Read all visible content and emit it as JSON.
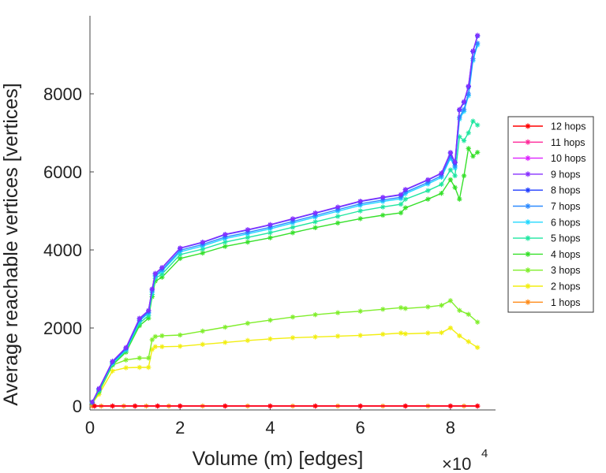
{
  "chart_data": {
    "type": "line",
    "title": "",
    "xlabel": "Volume (m) [edges]",
    "ylabel": "Average reachable vertices [vertices]",
    "x_multiplier_base": "×10",
    "x_multiplier_exp": "4",
    "xlim": [
      0,
      9
    ],
    "ylim": [
      -100,
      10000
    ],
    "xticks": [
      0,
      2,
      4,
      6,
      8
    ],
    "yticks": [
      0,
      2000,
      4000,
      6000,
      8000
    ],
    "xtick_labels": [
      "0",
      "2",
      "4",
      "6",
      "8"
    ],
    "ytick_labels": [
      "0",
      "2000",
      "4000",
      "6000",
      "8000"
    ],
    "grid": false,
    "legend_position": "right",
    "series": [
      {
        "name": "12 hops",
        "color": "#ff0000",
        "x": [
          0.1,
          0.5,
          1,
          1.5,
          2,
          3,
          4,
          5,
          6,
          7,
          8,
          8.6
        ],
        "y": [
          0,
          0,
          0,
          0,
          0,
          0,
          0,
          0,
          0,
          0,
          0,
          0
        ]
      },
      {
        "name": "11 hops",
        "color": "#ff2a9a",
        "x": [
          0.1,
          0.5,
          1,
          1.5,
          2,
          3,
          4,
          5,
          6,
          7,
          8,
          8.6
        ],
        "y": [
          0,
          0,
          0,
          0,
          0,
          0,
          0,
          0,
          0,
          0,
          0,
          0
        ]
      },
      {
        "name": "10 hops",
        "color": "#dd22ff",
        "x": [
          0.1,
          0.5,
          1,
          1.5,
          2,
          3,
          4,
          5,
          6,
          7,
          8,
          8.6
        ],
        "y": [
          0,
          0,
          0,
          0,
          0,
          0,
          0,
          0,
          0,
          0,
          0,
          0
        ]
      },
      {
        "name": "9 hops",
        "color": "#8830ff",
        "x": [
          0.05,
          0.2,
          0.5,
          0.8,
          1.1,
          1.3,
          1.38,
          1.45,
          1.6,
          2,
          2.5,
          3,
          3.5,
          4,
          4.5,
          5,
          5.5,
          6,
          6.5,
          6.9,
          7.0,
          7.5,
          7.8,
          8.0,
          8.1,
          8.2,
          8.3,
          8.4,
          8.5,
          8.6
        ],
        "y": [
          100,
          450,
          1150,
          1500,
          2250,
          2450,
          3000,
          3400,
          3550,
          4050,
          4200,
          4400,
          4520,
          4650,
          4800,
          4950,
          5100,
          5250,
          5350,
          5420,
          5550,
          5800,
          5970,
          6500,
          6250,
          7600,
          7800,
          8200,
          9100,
          9500
        ]
      },
      {
        "name": "8 hops",
        "color": "#1f3cff",
        "x": [
          0.05,
          0.2,
          0.5,
          0.8,
          1.1,
          1.3,
          1.38,
          1.45,
          1.6,
          2,
          2.5,
          3,
          3.5,
          4,
          4.5,
          5,
          5.5,
          6,
          6.5,
          6.9,
          7.0,
          7.5,
          7.8,
          8.0,
          8.1,
          8.2,
          8.3,
          8.4,
          8.5,
          8.6
        ],
        "y": [
          100,
          440,
          1140,
          1490,
          2240,
          2440,
          2990,
          3390,
          3540,
          4040,
          4190,
          4390,
          4510,
          4640,
          4790,
          4940,
          5090,
          5240,
          5340,
          5410,
          5540,
          5790,
          5960,
          6480,
          6230,
          7580,
          7780,
          8180,
          9080,
          9480
        ]
      },
      {
        "name": "7 hops",
        "color": "#2e8bff",
        "x": [
          0.05,
          0.2,
          0.5,
          0.8,
          1.1,
          1.3,
          1.38,
          1.45,
          1.6,
          2,
          2.5,
          3,
          3.5,
          4,
          4.5,
          5,
          5.5,
          6,
          6.5,
          6.9,
          7.0,
          7.5,
          7.8,
          8.0,
          8.1,
          8.2,
          8.3,
          8.4,
          8.5,
          8.6
        ],
        "y": [
          95,
          430,
          1120,
          1470,
          2200,
          2400,
          2950,
          3350,
          3490,
          3990,
          4140,
          4330,
          4450,
          4580,
          4730,
          4880,
          5030,
          5180,
          5280,
          5350,
          5480,
          5730,
          5900,
          6400,
          6150,
          7400,
          7600,
          8000,
          8900,
          9300
        ]
      },
      {
        "name": "6 hops",
        "color": "#22d8ff",
        "x": [
          0.05,
          0.2,
          0.5,
          0.8,
          1.1,
          1.3,
          1.38,
          1.45,
          1.6,
          2,
          2.5,
          3,
          3.5,
          4,
          4.5,
          5,
          5.5,
          6,
          6.5,
          6.9,
          7.0,
          7.5,
          7.8,
          8.0,
          8.1,
          8.2,
          8.3,
          8.4,
          8.5,
          8.6
        ],
        "y": [
          90,
          420,
          1100,
          1450,
          2180,
          2380,
          2920,
          3320,
          3460,
          3950,
          4100,
          4290,
          4410,
          4540,
          4690,
          4840,
          4990,
          5140,
          5240,
          5310,
          5440,
          5690,
          5860,
          6350,
          6100,
          7350,
          7550,
          7950,
          8850,
          9250
        ]
      },
      {
        "name": "5 hops",
        "color": "#1fe6a0",
        "x": [
          0.05,
          0.2,
          0.5,
          0.8,
          1.1,
          1.3,
          1.38,
          1.45,
          1.6,
          2,
          2.5,
          3,
          3.5,
          4,
          4.5,
          5,
          5.5,
          6,
          6.5,
          6.9,
          7.0,
          7.5,
          7.8,
          8.0,
          8.1,
          8.2,
          8.3,
          8.4,
          8.5,
          8.6
        ],
        "y": [
          85,
          400,
          1080,
          1420,
          2120,
          2320,
          2860,
          3270,
          3380,
          3880,
          4020,
          4200,
          4320,
          4440,
          4580,
          4720,
          4860,
          5000,
          5100,
          5170,
          5300,
          5520,
          5680,
          6050,
          5900,
          6900,
          6800,
          7000,
          7300,
          7200
        ]
      },
      {
        "name": "4 hops",
        "color": "#36e02a",
        "x": [
          0.05,
          0.2,
          0.5,
          0.8,
          1.1,
          1.3,
          1.38,
          1.45,
          1.6,
          2,
          2.5,
          3,
          3.5,
          4,
          4.5,
          5,
          5.5,
          6,
          6.5,
          6.9,
          7.0,
          7.5,
          7.8,
          8.0,
          8.1,
          8.2,
          8.3,
          8.4,
          8.5,
          8.6
        ],
        "y": [
          80,
          380,
          1050,
          1380,
          2060,
          2250,
          2800,
          3200,
          3300,
          3780,
          3920,
          4090,
          4200,
          4310,
          4440,
          4570,
          4690,
          4800,
          4890,
          4950,
          5080,
          5300,
          5450,
          5800,
          5600,
          5300,
          5900,
          6600,
          6400,
          6500
        ]
      },
      {
        "name": "3 hops",
        "color": "#7fee2a",
        "x": [
          0.05,
          0.2,
          0.5,
          0.8,
          1.1,
          1.3,
          1.38,
          1.45,
          1.6,
          2,
          2.5,
          3,
          3.5,
          4,
          4.5,
          5,
          5.5,
          6,
          6.5,
          6.9,
          7.0,
          7.5,
          7.8,
          8.0,
          8.2,
          8.4,
          8.6
        ],
        "y": [
          80,
          350,
          1050,
          1180,
          1230,
          1230,
          1700,
          1780,
          1800,
          1820,
          1920,
          2020,
          2120,
          2200,
          2280,
          2340,
          2390,
          2430,
          2480,
          2520,
          2500,
          2540,
          2580,
          2700,
          2450,
          2350,
          2150
        ]
      },
      {
        "name": "2 hops",
        "color": "#f2ee10",
        "x": [
          0.05,
          0.2,
          0.5,
          0.8,
          1.1,
          1.3,
          1.38,
          1.45,
          1.6,
          2,
          2.5,
          3,
          3.5,
          4,
          4.5,
          5,
          5.5,
          6,
          6.5,
          6.9,
          7.0,
          7.5,
          7.8,
          8.0,
          8.2,
          8.4,
          8.6
        ],
        "y": [
          70,
          300,
          900,
          980,
          990,
          990,
          1450,
          1520,
          1520,
          1530,
          1580,
          1630,
          1680,
          1720,
          1750,
          1770,
          1790,
          1810,
          1840,
          1870,
          1850,
          1870,
          1880,
          2000,
          1800,
          1650,
          1500
        ]
      },
      {
        "name": "1 hops",
        "color": "#ff8c1a",
        "x": [
          0.05,
          0.25,
          0.5,
          0.75,
          1,
          1.25,
          1.5,
          1.75,
          2,
          2.5,
          3,
          3.5,
          4,
          4.5,
          5,
          5.5,
          6,
          6.5,
          7,
          7.5,
          8,
          8.3,
          8.6
        ],
        "y": [
          0,
          0,
          0,
          0,
          0,
          0,
          0,
          0,
          0,
          0,
          0,
          0,
          0,
          0,
          0,
          0,
          0,
          0,
          0,
          0,
          0,
          0,
          0
        ]
      }
    ]
  }
}
